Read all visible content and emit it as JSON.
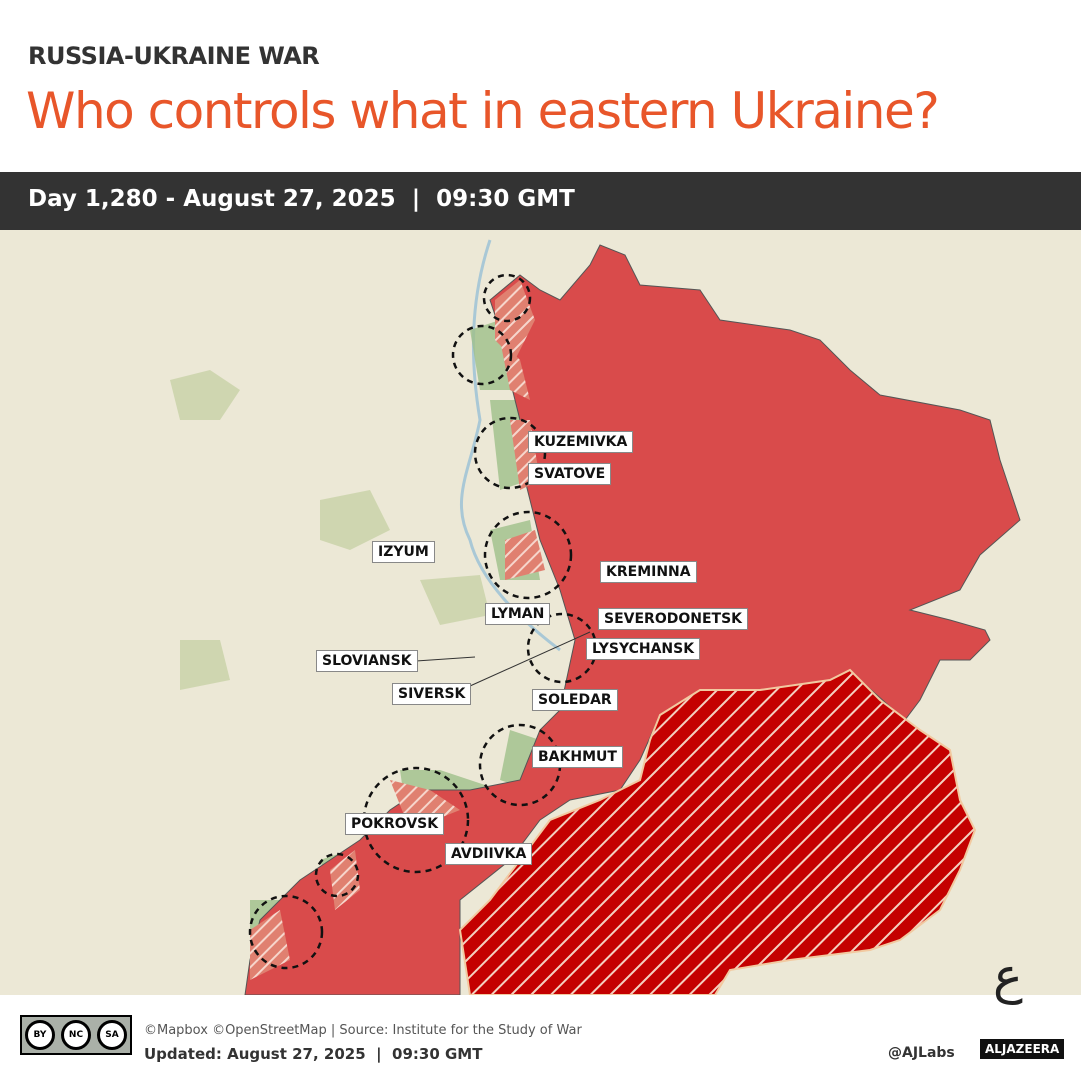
{
  "header": {
    "kicker": "RUSSIA-UKRAINE WAR",
    "title": "Who controls what in eastern Ukraine?",
    "dateline": "Day 1,280 - August 27, 2025  |  09:30 GMT"
  },
  "map": {
    "colors": {
      "russian_controlled": "#d94b4b",
      "occupied_before_2022": "#c40000",
      "ukrainian_counteroffensive": "#9fbf8a",
      "base": "#ece8d6"
    },
    "labels": [
      "KUZEMIVKA",
      "SVATOVE",
      "IZYUM",
      "KREMINNA",
      "LYMAN",
      "SEVERODONETSK",
      "SLOVIANSK",
      "LYSYCHANSK",
      "SIVERSK",
      "SOLEDAR",
      "BAKHMUT",
      "POKROVSK",
      "AVDIIVKA"
    ]
  },
  "footer": {
    "license": [
      "BY",
      "NC",
      "SA"
    ],
    "credit": "©Mapbox ©OpenStreetMap | Source: Institute for the Study of War",
    "updated": "Updated: August 27, 2025  |  09:30 GMT",
    "handle": "@AJLabs",
    "brand": "ALJAZEERA",
    "logo_icon": "al-jazeera-calligraphy-logo"
  }
}
